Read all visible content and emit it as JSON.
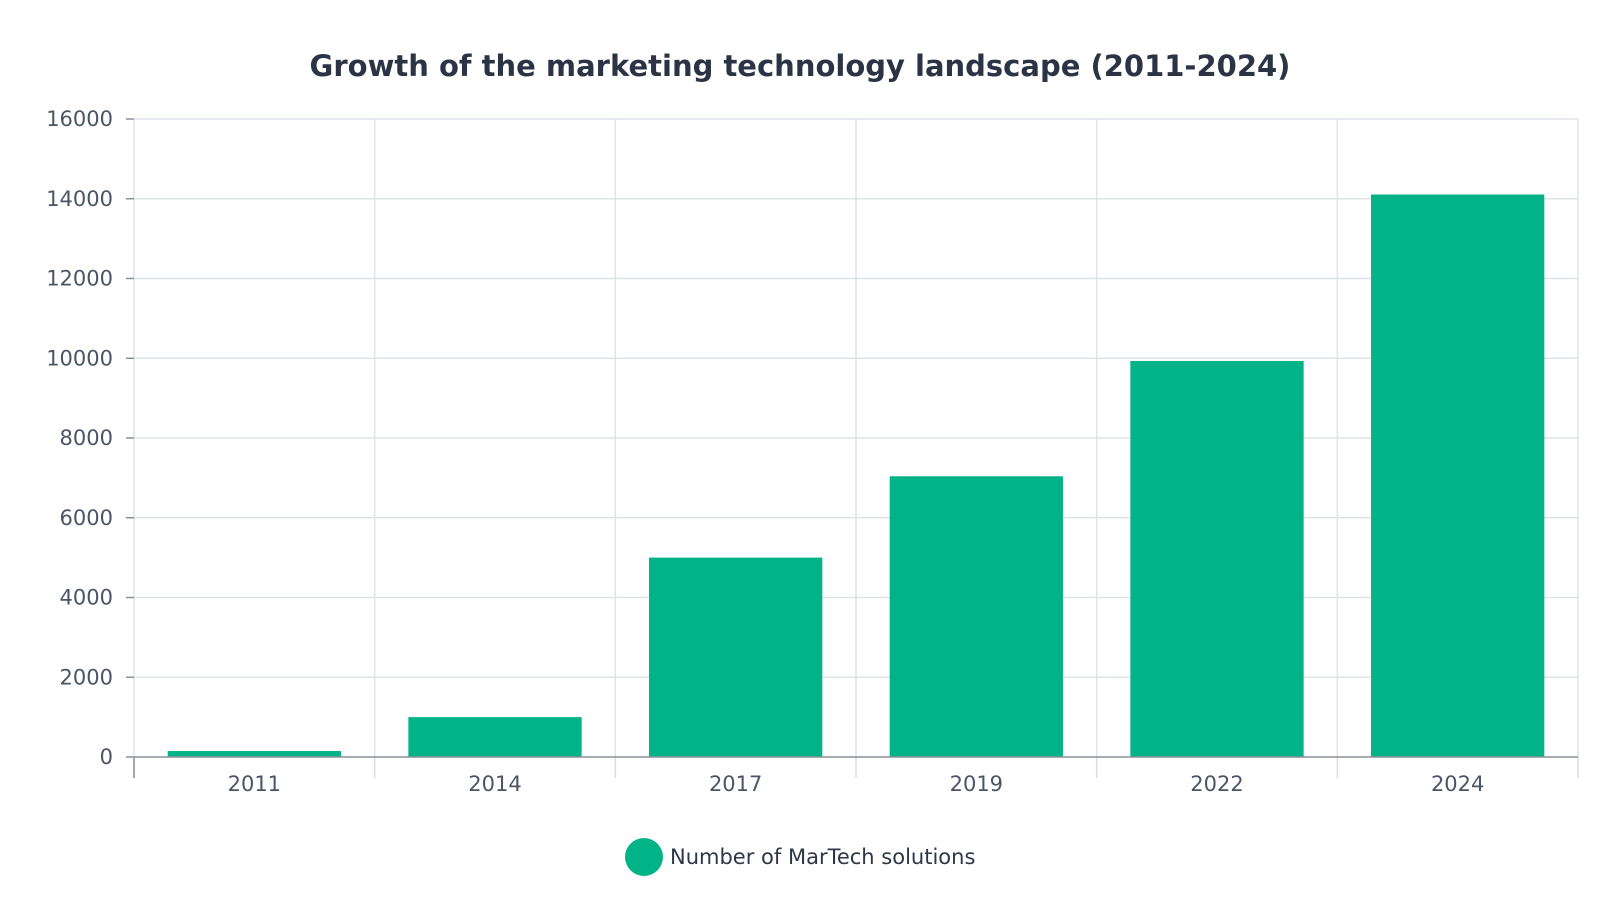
{
  "chart_data": {
    "type": "bar",
    "title": "Growth of the marketing technology landscape (2011-2024)",
    "categories": [
      "2011",
      "2014",
      "2017",
      "2019",
      "2022",
      "2024"
    ],
    "series": [
      {
        "name": "Number of MarTech solutions",
        "values": [
          150,
          1000,
          5000,
          7040,
          9932,
          14106
        ],
        "color": "#02b388"
      }
    ],
    "xlabel": "",
    "ylabel": "",
    "ylim": [
      0,
      16000
    ],
    "yticks": [
      0,
      2000,
      4000,
      6000,
      8000,
      10000,
      12000,
      14000,
      16000
    ],
    "grid": true,
    "legend_position": "bottom-center",
    "colors": {
      "bar": "#02b388",
      "grid": "#dfe3ea",
      "axis": "#8a9099",
      "text": "#4b5565",
      "title": "#2b3445"
    }
  }
}
